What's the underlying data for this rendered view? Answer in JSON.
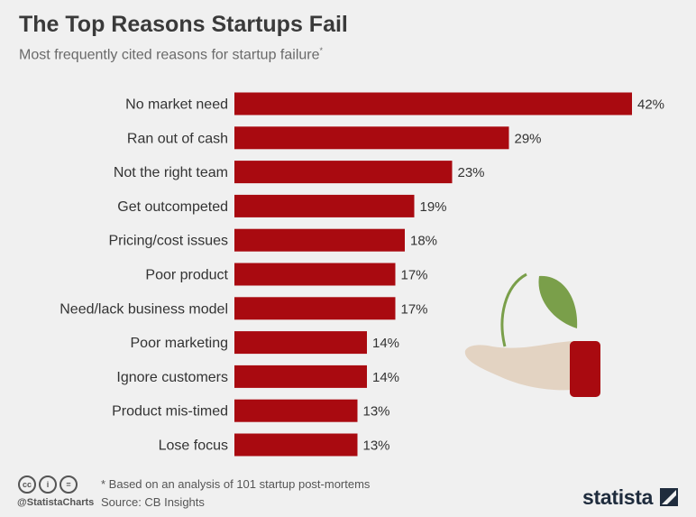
{
  "header": {
    "title": "The Top Reasons Startups Fail",
    "subtitle": "Most frequently cited reasons for startup failure",
    "subtitle_mark": "*"
  },
  "chart_data": {
    "type": "bar",
    "orientation": "horizontal",
    "title": "The Top Reasons Startups Fail",
    "subtitle": "Most frequently cited reasons for startup failure*",
    "categories": [
      "No market need",
      "Ran out of cash",
      "Not the right team",
      "Get outcompeted",
      "Pricing/cost issues",
      "Poor product",
      "Need/lack business model",
      "Poor marketing",
      "Ignore customers",
      "Product mis-timed",
      "Lose focus"
    ],
    "values": [
      42,
      29,
      23,
      19,
      18,
      17,
      17,
      14,
      14,
      13,
      13
    ],
    "value_labels": [
      "42%",
      "29%",
      "23%",
      "19%",
      "18%",
      "17%",
      "17%",
      "14%",
      "14%",
      "13%",
      "13%"
    ],
    "unit": "%",
    "xlim": [
      0,
      42
    ],
    "grid": false,
    "legend": "none",
    "color": "#a90a10"
  },
  "footer": {
    "handle": "@StatistaCharts",
    "note": "* Based on an analysis of 101 startup post-mortems",
    "source": "Source: CB Insights",
    "brand": "statista",
    "icons": [
      "cc-icon",
      "by-attribution-icon",
      "no-derivatives-icon"
    ]
  },
  "colors": {
    "bar": "#a90a10",
    "background": "#f0f0f0",
    "leaf": "#7a9f4a",
    "hand": "#e3d3c2"
  }
}
